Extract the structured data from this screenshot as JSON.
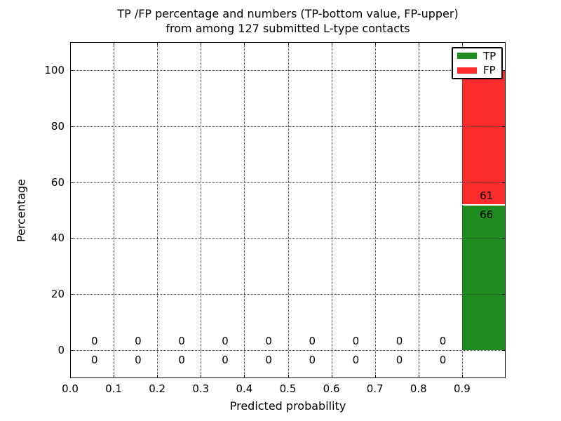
{
  "figure": {
    "title_line1": "TP /FP percentage and numbers (TP-bottom value, FP-upper)",
    "title_line2": "from among 127 submitted L-type contacts",
    "background_color": "#ffffff"
  },
  "chart_data": {
    "type": "bar",
    "stacked": true,
    "title": "TP /FP percentage and numbers (TP-bottom value, FP-upper)\nfrom among 127 submitted L-type contacts",
    "xlabel": "Predicted probability",
    "ylabel": "Percentage",
    "xlim": [
      0.0,
      1.0
    ],
    "ylim": [
      -10,
      110
    ],
    "x_ticks": [
      {
        "value": 0.0,
        "label": "0.0"
      },
      {
        "value": 0.1,
        "label": "0.1"
      },
      {
        "value": 0.2,
        "label": "0.2"
      },
      {
        "value": 0.3,
        "label": "0.3"
      },
      {
        "value": 0.4,
        "label": "0.4"
      },
      {
        "value": 0.5,
        "label": "0.5"
      },
      {
        "value": 0.6,
        "label": "0.6"
      },
      {
        "value": 0.7,
        "label": "0.7"
      },
      {
        "value": 0.8,
        "label": "0.8"
      },
      {
        "value": 0.9,
        "label": "0.9"
      }
    ],
    "y_ticks": [
      {
        "value": 0,
        "label": "0"
      },
      {
        "value": 20,
        "label": "20"
      },
      {
        "value": 40,
        "label": "40"
      },
      {
        "value": 60,
        "label": "60"
      },
      {
        "value": 80,
        "label": "80"
      },
      {
        "value": 100,
        "label": "100"
      }
    ],
    "grid": {
      "style": "dotted",
      "drawn_above_bars": true
    },
    "total_contacts": 127,
    "unit": "percent of 127 contacts",
    "bins": [
      {
        "range": [
          0.0,
          0.1
        ],
        "tp_count": 0,
        "fp_count": 0
      },
      {
        "range": [
          0.1,
          0.2
        ],
        "tp_count": 0,
        "fp_count": 0
      },
      {
        "range": [
          0.2,
          0.3
        ],
        "tp_count": 0,
        "fp_count": 0
      },
      {
        "range": [
          0.3,
          0.4
        ],
        "tp_count": 0,
        "fp_count": 0
      },
      {
        "range": [
          0.4,
          0.5
        ],
        "tp_count": 0,
        "fp_count": 0
      },
      {
        "range": [
          0.5,
          0.6
        ],
        "tp_count": 0,
        "fp_count": 0
      },
      {
        "range": [
          0.6,
          0.7
        ],
        "tp_count": 0,
        "fp_count": 0
      },
      {
        "range": [
          0.7,
          0.8
        ],
        "tp_count": 0,
        "fp_count": 0
      },
      {
        "range": [
          0.8,
          0.9
        ],
        "tp_count": 0,
        "fp_count": 0
      },
      {
        "range": [
          0.9,
          1.0
        ],
        "tp_count": 66,
        "fp_count": 61,
        "tp_pct": 51.97,
        "fp_pct": 48.03
      }
    ],
    "series": [
      {
        "name": "TP",
        "color": "#1e8c1e",
        "counts": [
          0,
          0,
          0,
          0,
          0,
          0,
          0,
          0,
          0,
          66
        ]
      },
      {
        "name": "FP",
        "color": "#fa2c2c",
        "counts": [
          0,
          0,
          0,
          0,
          0,
          0,
          0,
          0,
          0,
          61
        ]
      }
    ],
    "legend": {
      "position": "upper right",
      "entries": [
        {
          "label": "TP",
          "color": "#1e8c1e"
        },
        {
          "label": "FP",
          "color": "#fa2c2c"
        }
      ]
    }
  }
}
